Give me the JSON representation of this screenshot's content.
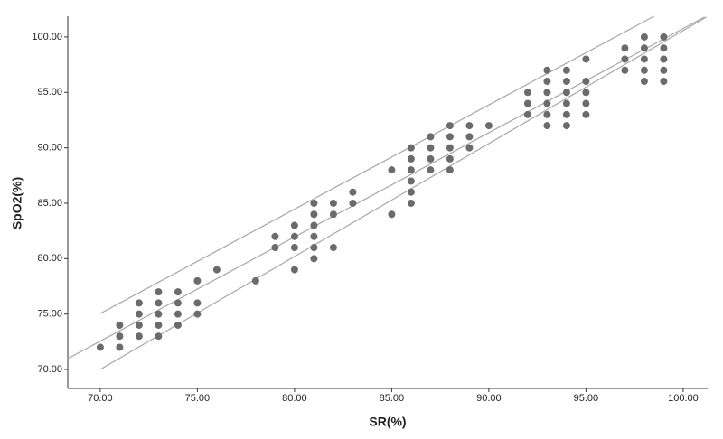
{
  "chart_data": {
    "type": "scatter",
    "x_label": "SR(%)",
    "y_label": "SpO2(%)",
    "series": [
      {
        "color": "#6b6b6b",
        "x": [
          70,
          71,
          71,
          71,
          72,
          72,
          72,
          72,
          73,
          73,
          73,
          73,
          73,
          74,
          74,
          74,
          74,
          75,
          75,
          75,
          76,
          78,
          79,
          79,
          80,
          80,
          80,
          80,
          81,
          81,
          81,
          81,
          81,
          81,
          82,
          82,
          82,
          83,
          83,
          85,
          85,
          86,
          86,
          86,
          86,
          86,
          86,
          87,
          87,
          87,
          87,
          88,
          88,
          88,
          88,
          88,
          89,
          89,
          89,
          90,
          92,
          92,
          92,
          93,
          93,
          93,
          93,
          93,
          93,
          94,
          94,
          94,
          94,
          94,
          94,
          95,
          95,
          95,
          95,
          95,
          97,
          97,
          97,
          98,
          98,
          98,
          98,
          98,
          99,
          99,
          99,
          99,
          99
        ],
        "y": [
          72,
          74,
          73,
          72,
          76,
          75,
          74,
          73,
          77,
          76,
          75,
          74,
          73,
          77,
          76,
          75,
          74,
          78,
          76,
          75,
          79,
          78,
          82,
          81,
          83,
          82,
          81,
          79,
          85,
          84,
          83,
          82,
          81,
          80,
          85,
          84,
          81,
          86,
          85,
          88,
          84,
          90,
          89,
          88,
          87,
          86,
          85,
          91,
          90,
          89,
          88,
          92,
          91,
          90,
          89,
          88,
          92,
          91,
          90,
          92,
          95,
          94,
          93,
          97,
          96,
          95,
          94,
          93,
          92,
          97,
          96,
          95,
          94,
          93,
          92,
          98,
          96,
          95,
          94,
          93,
          99,
          98,
          97,
          100,
          99,
          98,
          97,
          96,
          100,
          99,
          98,
          97,
          96
        ]
      }
    ],
    "lines": [
      {
        "color": "#a6a6a6",
        "x": [
          70,
          98.5
        ],
        "y": [
          75.05,
          101.87
        ]
      },
      {
        "color": "#a6a6a6",
        "x": [
          68.33,
          101.1
        ],
        "y": [
          70.98,
          101.8
        ]
      },
      {
        "color": "#a6a6a6",
        "x": [
          70,
          101.2
        ],
        "y": [
          70,
          101.8
        ]
      }
    ],
    "xlim": [
      68.33,
      101.26
    ],
    "ylim": [
      68.29,
      101.87
    ],
    "xticks": [
      {
        "value": 70,
        "label": "70.00"
      },
      {
        "value": 75,
        "label": "75.00"
      },
      {
        "value": 80,
        "label": "80.00"
      },
      {
        "value": 85,
        "label": "85.00"
      },
      {
        "value": 90,
        "label": "90.00"
      },
      {
        "value": 95,
        "label": "95.00"
      },
      {
        "value": 100,
        "label": "100.00"
      }
    ],
    "yticks": [
      {
        "value": 70,
        "label": "70.00"
      },
      {
        "value": 75,
        "label": "75.00"
      },
      {
        "value": 80,
        "label": "80.00"
      },
      {
        "value": 85,
        "label": "85.00"
      },
      {
        "value": 90,
        "label": "90.00"
      },
      {
        "value": 95,
        "label": "95.00"
      },
      {
        "value": 100,
        "label": "100.00"
      }
    ],
    "grid": false
  }
}
